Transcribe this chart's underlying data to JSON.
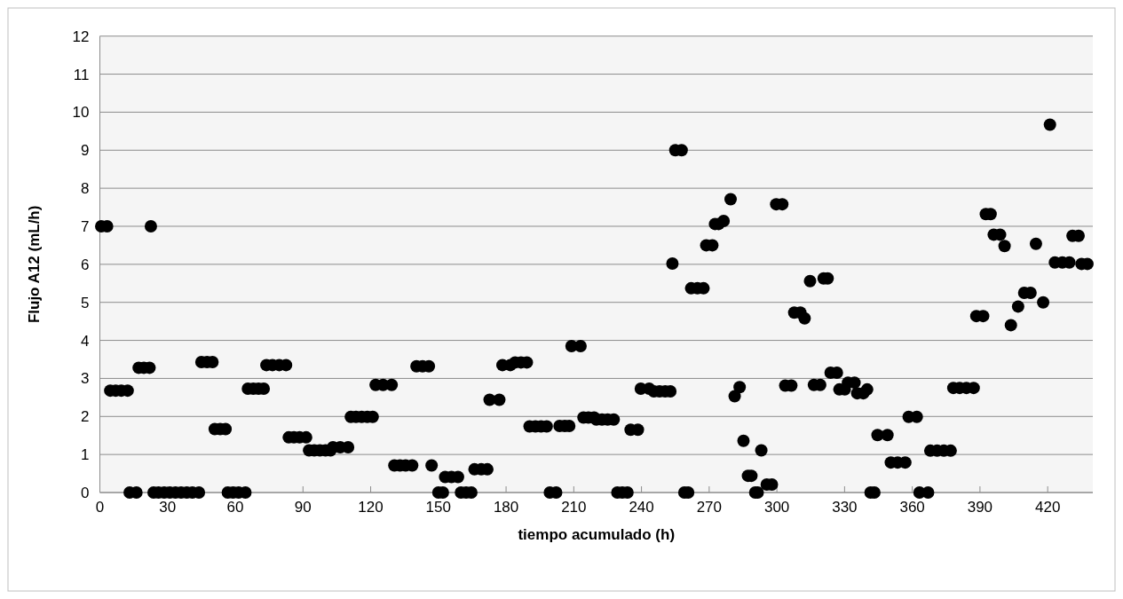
{
  "chart_data": {
    "type": "scatter",
    "xlabel": "tiempo acumulado (h)",
    "ylabel": "Flujo A12 (mL/h)",
    "xlim": [
      0,
      440
    ],
    "xticks": [
      0,
      30,
      60,
      90,
      120,
      150,
      180,
      210,
      240,
      270,
      300,
      330,
      360,
      390,
      420
    ],
    "ylim": [
      0,
      12
    ],
    "yticks": [
      0,
      1,
      2,
      3,
      4,
      5,
      6,
      7,
      8,
      9,
      10,
      11,
      12
    ],
    "grid": "y",
    "marker": "circle",
    "series": [
      {
        "color": "#000000",
        "x": [
          0.6,
          3.2,
          4.6,
          7,
          9.5,
          12.3,
          13.2,
          16.2,
          17.2,
          19.5,
          22.0,
          22.6,
          23.8,
          26,
          28.5,
          31,
          33.5,
          36,
          38.5,
          41,
          43.9,
          45,
          47.5,
          49.9,
          50.9,
          53.3,
          55.7,
          56.7,
          59,
          61.5,
          64.5,
          65.6,
          68,
          70.3,
          72.6,
          73.8,
          76.5,
          79.5,
          82.5,
          83.7,
          86,
          88.5,
          91.4,
          92.7,
          95,
          97.5,
          100,
          102.2,
          103.3,
          106.5,
          110,
          111.2,
          113.5,
          116,
          118.5,
          120.9,
          122.2,
          125.5,
          129.3,
          130.5,
          133,
          135.5,
          138.4,
          140.3,
          143,
          145.8,
          147,
          150,
          152,
          153,
          155.8,
          158.7,
          160,
          162.3,
          164.6,
          166,
          169,
          171.7,
          172.7,
          177,
          178.4,
          181.9,
          184,
          186.6,
          189.2,
          190.4,
          193,
          195.5,
          198,
          199.4,
          202.2,
          203.7,
          206,
          208,
          209,
          213,
          214.3,
          216.5,
          219,
          220,
          222.5,
          225,
          227.7,
          229.3,
          231.5,
          233.8,
          235.2,
          238.4,
          239.7,
          243.4,
          245.5,
          248,
          250.5,
          252.8,
          253.7,
          255,
          257.8,
          259,
          260.7,
          262,
          264.8,
          267.5,
          268.7,
          271.4,
          272.6,
          274.2,
          276.4,
          279.5,
          281.3,
          283.5,
          285.2,
          287.2,
          288.7,
          290.4,
          291.5,
          293.1,
          295.5,
          297.8,
          299.7,
          302.4,
          303.7,
          306.4,
          307.7,
          310.4,
          312.3,
          314.7,
          316.4,
          319.2,
          320.7,
          322.5,
          323.8,
          326.6,
          327.7,
          330.1,
          331.5,
          334.4,
          335.6,
          338.3,
          340,
          341.5,
          343.2,
          344.6,
          349,
          350.5,
          353.5,
          356.9,
          358.4,
          362,
          363.2,
          367,
          368,
          371,
          374,
          377,
          378.2,
          381,
          384,
          387.2,
          388.4,
          391.4,
          392.6,
          394.7,
          396.1,
          398.9,
          400.9,
          403.7,
          406.9,
          409.6,
          412.4,
          414.8,
          418,
          421,
          423.2,
          426.5,
          429.6,
          431,
          433.7,
          435,
          437.6
        ],
        "values": [
          7.0,
          7.0,
          2.68,
          2.68,
          2.68,
          2.68,
          0,
          0,
          3.28,
          3.28,
          3.28,
          7.0,
          0,
          0,
          0,
          0,
          0,
          0,
          0,
          0,
          0,
          3.43,
          3.43,
          3.43,
          1.67,
          1.67,
          1.67,
          0,
          0,
          0,
          0,
          2.73,
          2.73,
          2.73,
          2.73,
          3.35,
          3.35,
          3.35,
          3.35,
          1.45,
          1.45,
          1.45,
          1.45,
          1.11,
          1.11,
          1.11,
          1.11,
          1.11,
          1.19,
          1.19,
          1.19,
          1.99,
          1.99,
          1.99,
          1.99,
          1.99,
          2.83,
          2.83,
          2.83,
          0.71,
          0.71,
          0.71,
          0.71,
          3.32,
          3.32,
          3.32,
          0.71,
          0,
          0,
          0.41,
          0.41,
          0.41,
          0,
          0,
          0,
          0.61,
          0.61,
          0.61,
          2.44,
          2.44,
          3.35,
          3.35,
          3.42,
          3.42,
          3.42,
          1.74,
          1.74,
          1.74,
          1.74,
          0,
          0,
          1.75,
          1.75,
          1.75,
          3.85,
          3.85,
          1.97,
          1.97,
          1.97,
          1.92,
          1.92,
          1.92,
          1.92,
          0,
          0,
          0,
          1.65,
          1.65,
          2.73,
          2.73,
          2.66,
          2.66,
          2.66,
          2.66,
          6.02,
          9.0,
          9.0,
          0,
          0,
          5.37,
          5.37,
          5.37,
          6.5,
          6.5,
          7.06,
          7.06,
          7.14,
          7.71,
          2.53,
          2.77,
          1.36,
          0.44,
          0.44,
          0,
          0,
          1.11,
          0.21,
          0.21,
          7.58,
          7.58,
          2.81,
          2.81,
          4.73,
          4.73,
          4.58,
          5.56,
          2.83,
          2.83,
          5.63,
          5.63,
          3.15,
          3.15,
          2.71,
          2.71,
          2.89,
          2.89,
          2.61,
          2.61,
          2.71,
          0,
          0,
          1.51,
          1.51,
          0.79,
          0.79,
          0.79,
          1.99,
          1.99,
          0,
          0,
          1.1,
          1.1,
          1.1,
          1.1,
          2.75,
          2.75,
          2.75,
          2.75,
          4.64,
          4.64,
          7.32,
          7.32,
          6.78,
          6.78,
          6.48,
          4.4,
          4.89,
          5.25,
          5.25,
          6.54,
          5.0,
          9.67,
          6.05,
          6.05,
          6.05,
          6.75,
          6.75,
          6.01,
          6.01
        ]
      }
    ]
  }
}
